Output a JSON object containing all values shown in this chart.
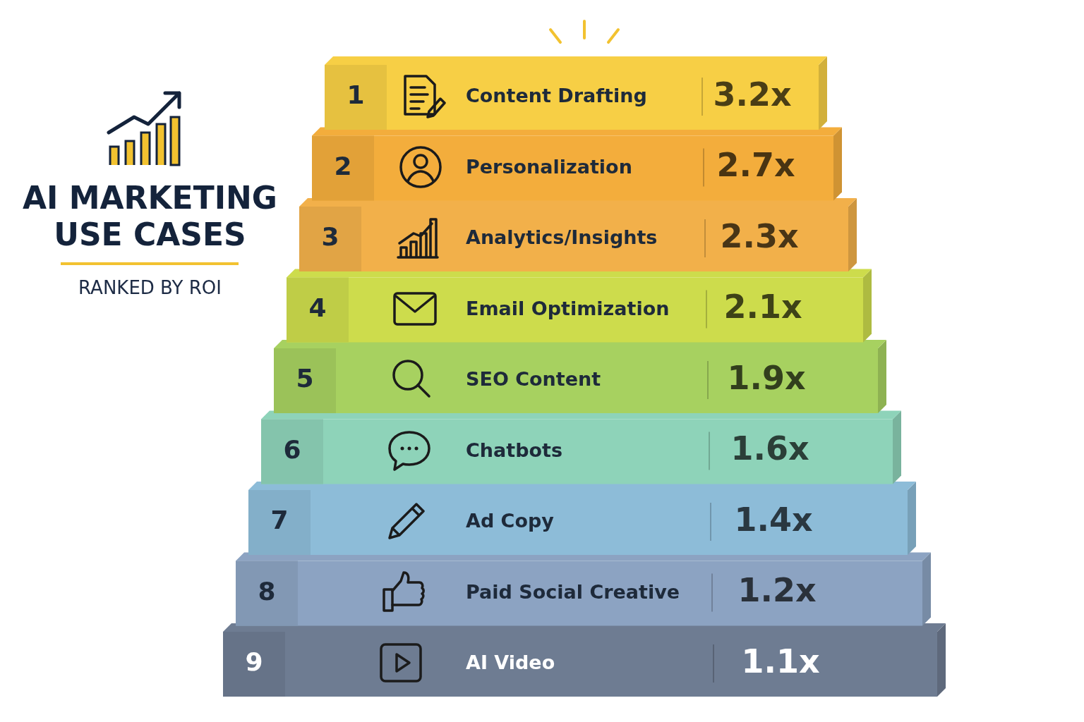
{
  "chart_data": {
    "type": "other",
    "title": "AI MARKETING USE CASES",
    "subtitle": "RANKED BY ROI",
    "categories": [
      "Content Drafting",
      "Personalization",
      "Analytics/Insights",
      "Email Optimization",
      "SEO Content",
      "Chatbots",
      "Ad Copy",
      "Paid Social Creative",
      "AI Video"
    ],
    "values": [
      3.2,
      2.7,
      2.3,
      2.1,
      1.9,
      1.6,
      1.4,
      1.2,
      1.1
    ],
    "value_labels": [
      "3.2x",
      "2.7x",
      "2.3x",
      "2.1x",
      "1.9x",
      "1.6x",
      "1.4x",
      "1.2x",
      "1.1x"
    ],
    "annotations": [
      "1",
      "2",
      "3",
      "4",
      "5",
      "6",
      "7",
      "8",
      "9"
    ],
    "colors": [
      "#f7cf45",
      "#f3ad3c",
      "#f2b04a",
      "#cddc4c",
      "#a7d160",
      "#8ed3b9",
      "#8dbcd8",
      "#8ca3c2",
      "#6e7c92"
    ]
  }
}
